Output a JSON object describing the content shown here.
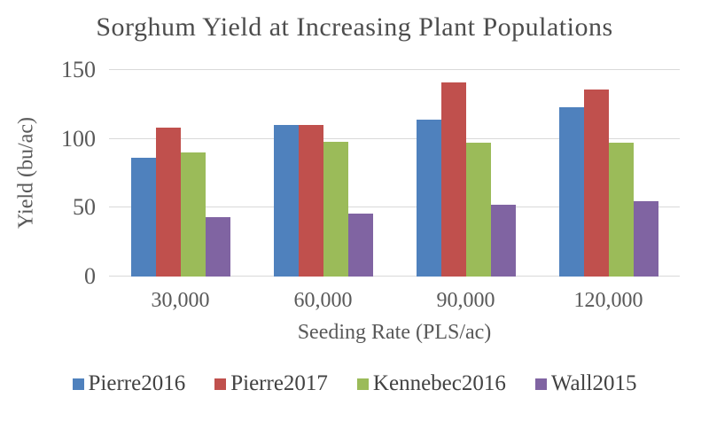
{
  "chart_data": {
    "type": "bar",
    "title": "Sorghum Yield at Increasing Plant Populations",
    "xlabel": "Seeding Rate (PLS/ac)",
    "ylabel": "Yield (bu/ac)",
    "categories": [
      "30,000",
      "60,000",
      "90,000",
      "120,000"
    ],
    "series": [
      {
        "name": "Pierre2016",
        "color": "#4F81BD",
        "values": [
          86,
          110,
          114,
          123
        ]
      },
      {
        "name": "Pierre2017",
        "color": "#C0504D",
        "values": [
          108,
          110,
          141,
          136
        ]
      },
      {
        "name": "Kennebec2016",
        "color": "#9BBB59",
        "values": [
          90,
          98,
          97,
          97
        ]
      },
      {
        "name": "Wall2015",
        "color": "#8064A2",
        "values": [
          43,
          46,
          52,
          55
        ]
      }
    ],
    "ylim": [
      0,
      150
    ],
    "yticks": [
      0,
      50,
      100,
      150
    ],
    "grid": "horizontal",
    "gridline_color": "#d9d9d9",
    "legend_position": "bottom"
  }
}
